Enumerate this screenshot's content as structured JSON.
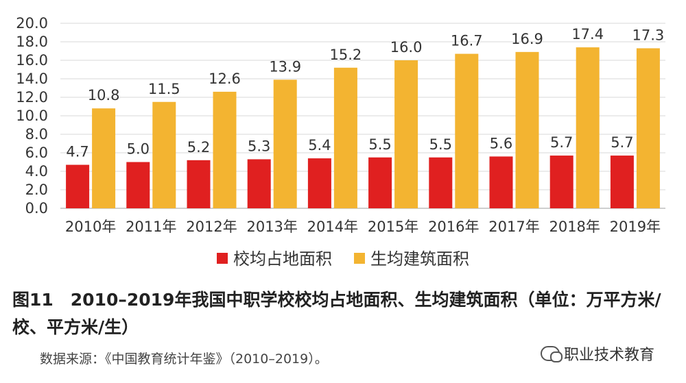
{
  "chart_data": {
    "type": "bar",
    "categories": [
      "2010年",
      "2011年",
      "2012年",
      "2013年",
      "2014年",
      "2015年",
      "2016年",
      "2017年",
      "2018年",
      "2019年"
    ],
    "series": [
      {
        "name": "校均占地面积",
        "color": "#e02020",
        "values": [
          4.7,
          5.0,
          5.2,
          5.3,
          5.4,
          5.5,
          5.5,
          5.6,
          5.7,
          5.7
        ]
      },
      {
        "name": "生均建筑面积",
        "color": "#f3b431",
        "values": [
          10.8,
          11.5,
          12.6,
          13.9,
          15.2,
          16.0,
          16.7,
          16.9,
          17.4,
          17.3
        ]
      }
    ],
    "ylim": [
      0,
      20
    ],
    "yticks": [
      "0.0",
      "2.0",
      "4.0",
      "6.0",
      "8.0",
      "10.0",
      "12.0",
      "14.0",
      "16.0",
      "18.0",
      "20.0"
    ],
    "grid": true,
    "legend_position": "bottom"
  },
  "caption": "图11　2010–2019年我国中职学校校均占地面积、生均建筑面积（单位：万平方米/校、平方米/生）",
  "source": "数据来源：《中国教育统计年鉴》（2010–2019）。",
  "watermark": "职业技术教育"
}
